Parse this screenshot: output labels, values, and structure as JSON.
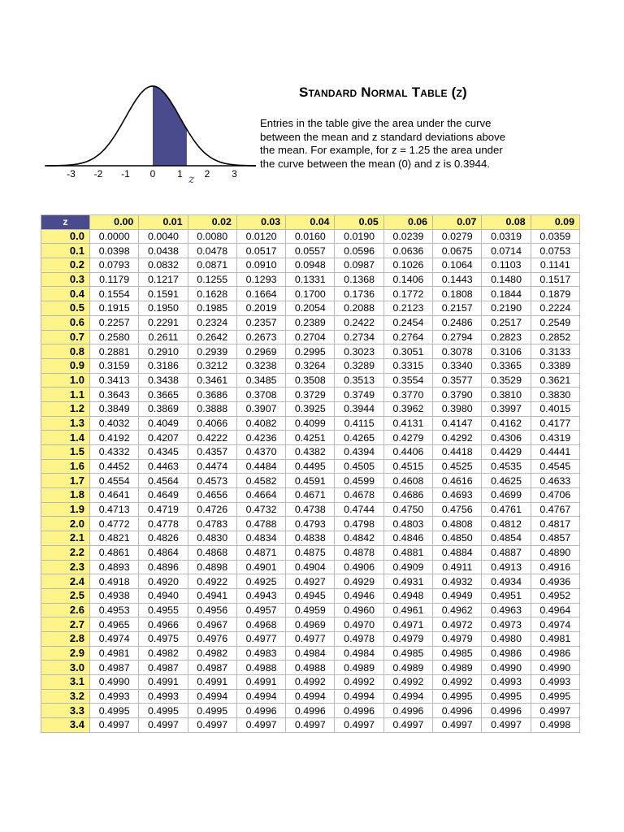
{
  "figure": {
    "axis_ticks": [
      "-3",
      "-2",
      "-1",
      "0",
      "1",
      "2",
      "3"
    ],
    "z_marker": "z",
    "shade_color": "#4a4b8c"
  },
  "header": {
    "title": "Standard Normal Table (z)",
    "description_lines": [
      "Entries in the table give the area under the curve",
      "between the mean and z standard deviations above",
      "the mean. For example, for z = 1.25 the area under",
      "the curve between the mean (0)  and z  is 0.3944."
    ]
  },
  "table": {
    "corner_label": "z",
    "columns": [
      "0.00",
      "0.01",
      "0.02",
      "0.03",
      "0.04",
      "0.05",
      "0.06",
      "0.07",
      "0.08",
      "0.09"
    ],
    "rows": [
      {
        "z": "0.0",
        "v": [
          "0.0000",
          "0.0040",
          "0.0080",
          "0.0120",
          "0.0160",
          "0.0190",
          "0.0239",
          "0.0279",
          "0.0319",
          "0.0359"
        ]
      },
      {
        "z": "0.1",
        "v": [
          "0.0398",
          "0.0438",
          "0.0478",
          "0.0517",
          "0.0557",
          "0.0596",
          "0.0636",
          "0.0675",
          "0.0714",
          "0.0753"
        ]
      },
      {
        "z": "0.2",
        "v": [
          "0.0793",
          "0.0832",
          "0.0871",
          "0.0910",
          "0.0948",
          "0.0987",
          "0.1026",
          "0.1064",
          "0.1103",
          "0.1141"
        ]
      },
      {
        "z": "0.3",
        "v": [
          "0.1179",
          "0.1217",
          "0.1255",
          "0.1293",
          "0.1331",
          "0.1368",
          "0.1406",
          "0.1443",
          "0.1480",
          "0.1517"
        ]
      },
      {
        "z": "0.4",
        "v": [
          "0.1554",
          "0.1591",
          "0.1628",
          "0.1664",
          "0.1700",
          "0.1736",
          "0.1772",
          "0.1808",
          "0.1844",
          "0.1879"
        ]
      },
      {
        "z": "0.5",
        "v": [
          "0.1915",
          "0.1950",
          "0.1985",
          "0.2019",
          "0.2054",
          "0.2088",
          "0.2123",
          "0.2157",
          "0.2190",
          "0.2224"
        ]
      },
      {
        "z": "0.6",
        "v": [
          "0.2257",
          "0.2291",
          "0.2324",
          "0.2357",
          "0.2389",
          "0.2422",
          "0.2454",
          "0.2486",
          "0.2517",
          "0.2549"
        ]
      },
      {
        "z": "0.7",
        "v": [
          "0.2580",
          "0.2611",
          "0.2642",
          "0.2673",
          "0.2704",
          "0.2734",
          "0.2764",
          "0.2794",
          "0.2823",
          "0.2852"
        ]
      },
      {
        "z": "0.8",
        "v": [
          "0.2881",
          "0.2910",
          "0.2939",
          "0.2969",
          "0.2995",
          "0.3023",
          "0.3051",
          "0.3078",
          "0.3106",
          "0.3133"
        ]
      },
      {
        "z": "0.9",
        "v": [
          "0.3159",
          "0.3186",
          "0.3212",
          "0.3238",
          "0.3264",
          "0.3289",
          "0.3315",
          "0.3340",
          "0.3365",
          "0.3389"
        ]
      },
      {
        "z": "1.0",
        "v": [
          "0.3413",
          "0.3438",
          "0.3461",
          "0.3485",
          "0.3508",
          "0.3513",
          "0.3554",
          "0.3577",
          "0.3529",
          "0.3621"
        ]
      },
      {
        "z": "1.1",
        "v": [
          "0.3643",
          "0.3665",
          "0.3686",
          "0.3708",
          "0.3729",
          "0.3749",
          "0.3770",
          "0.3790",
          "0.3810",
          "0.3830"
        ]
      },
      {
        "z": "1.2",
        "v": [
          "0.3849",
          "0.3869",
          "0.3888",
          "0.3907",
          "0.3925",
          "0.3944",
          "0.3962",
          "0.3980",
          "0.3997",
          "0.4015"
        ]
      },
      {
        "z": "1.3",
        "v": [
          "0.4032",
          "0.4049",
          "0.4066",
          "0.4082",
          "0.4099",
          "0.4115",
          "0.4131",
          "0.4147",
          "0.4162",
          "0.4177"
        ]
      },
      {
        "z": "1.4",
        "v": [
          "0.4192",
          "0.4207",
          "0.4222",
          "0.4236",
          "0.4251",
          "0.4265",
          "0.4279",
          "0.4292",
          "0.4306",
          "0.4319"
        ]
      },
      {
        "z": "1.5",
        "v": [
          "0.4332",
          "0.4345",
          "0.4357",
          "0.4370",
          "0.4382",
          "0.4394",
          "0.4406",
          "0.4418",
          "0.4429",
          "0.4441"
        ]
      },
      {
        "z": "1.6",
        "v": [
          "0.4452",
          "0.4463",
          "0.4474",
          "0.4484",
          "0.4495",
          "0.4505",
          "0.4515",
          "0.4525",
          "0.4535",
          "0.4545"
        ]
      },
      {
        "z": "1.7",
        "v": [
          "0.4554",
          "0.4564",
          "0.4573",
          "0.4582",
          "0.4591",
          "0.4599",
          "0.4608",
          "0.4616",
          "0.4625",
          "0.4633"
        ]
      },
      {
        "z": "1.8",
        "v": [
          "0.4641",
          "0.4649",
          "0.4656",
          "0.4664",
          "0.4671",
          "0.4678",
          "0.4686",
          "0.4693",
          "0.4699",
          "0.4706"
        ]
      },
      {
        "z": "1.9",
        "v": [
          "0.4713",
          "0.4719",
          "0.4726",
          "0.4732",
          "0.4738",
          "0.4744",
          "0.4750",
          "0.4756",
          "0.4761",
          "0.4767"
        ]
      },
      {
        "z": "2.0",
        "v": [
          "0.4772",
          "0.4778",
          "0.4783",
          "0.4788",
          "0.4793",
          "0.4798",
          "0.4803",
          "0.4808",
          "0.4812",
          "0.4817"
        ]
      },
      {
        "z": "2.1",
        "v": [
          "0.4821",
          "0.4826",
          "0.4830",
          "0.4834",
          "0.4838",
          "0.4842",
          "0.4846",
          "0.4850",
          "0.4854",
          "0.4857"
        ]
      },
      {
        "z": "2.2",
        "v": [
          "0.4861",
          "0.4864",
          "0.4868",
          "0.4871",
          "0.4875",
          "0.4878",
          "0.4881",
          "0.4884",
          "0.4887",
          "0.4890"
        ]
      },
      {
        "z": "2.3",
        "v": [
          "0.4893",
          "0.4896",
          "0.4898",
          "0.4901",
          "0.4904",
          "0.4906",
          "0.4909",
          "0.4911",
          "0.4913",
          "0.4916"
        ]
      },
      {
        "z": "2.4",
        "v": [
          "0.4918",
          "0.4920",
          "0.4922",
          "0.4925",
          "0.4927",
          "0.4929",
          "0.4931",
          "0.4932",
          "0.4934",
          "0.4936"
        ]
      },
      {
        "z": "2.5",
        "v": [
          "0.4938",
          "0.4940",
          "0.4941",
          "0.4943",
          "0.4945",
          "0.4946",
          "0.4948",
          "0.4949",
          "0.4951",
          "0.4952"
        ]
      },
      {
        "z": "2.6",
        "v": [
          "0.4953",
          "0.4955",
          "0.4956",
          "0.4957",
          "0.4959",
          "0.4960",
          "0.4961",
          "0.4962",
          "0.4963",
          "0.4964"
        ]
      },
      {
        "z": "2.7",
        "v": [
          "0.4965",
          "0.4966",
          "0.4967",
          "0.4968",
          "0.4969",
          "0.4970",
          "0.4971",
          "0.4972",
          "0.4973",
          "0.4974"
        ]
      },
      {
        "z": "2.8",
        "v": [
          "0.4974",
          "0.4975",
          "0.4976",
          "0.4977",
          "0.4977",
          "0.4978",
          "0.4979",
          "0.4979",
          "0.4980",
          "0.4981"
        ]
      },
      {
        "z": "2.9",
        "v": [
          "0.4981",
          "0.4982",
          "0.4982",
          "0.4983",
          "0.4984",
          "0.4984",
          "0.4985",
          "0.4985",
          "0.4986",
          "0.4986"
        ]
      },
      {
        "z": "3.0",
        "v": [
          "0.4987",
          "0.4987",
          "0.4987",
          "0.4988",
          "0.4988",
          "0.4989",
          "0.4989",
          "0.4989",
          "0.4990",
          "0.4990"
        ]
      },
      {
        "z": "3.1",
        "v": [
          "0.4990",
          "0.4991",
          "0.4991",
          "0.4991",
          "0.4992",
          "0.4992",
          "0.4992",
          "0.4992",
          "0.4993",
          "0.4993"
        ]
      },
      {
        "z": "3.2",
        "v": [
          "0.4993",
          "0.4993",
          "0.4994",
          "0.4994",
          "0.4994",
          "0.4994",
          "0.4994",
          "0.4995",
          "0.4995",
          "0.4995"
        ]
      },
      {
        "z": "3.3",
        "v": [
          "0.4995",
          "0.4995",
          "0.4995",
          "0.4996",
          "0.4996",
          "0.4996",
          "0.4996",
          "0.4996",
          "0.4996",
          "0.4997"
        ]
      },
      {
        "z": "3.4",
        "v": [
          "0.4997",
          "0.4997",
          "0.4997",
          "0.4997",
          "0.4997",
          "0.4997",
          "0.4997",
          "0.4997",
          "0.4997",
          "0.4998"
        ]
      }
    ]
  }
}
